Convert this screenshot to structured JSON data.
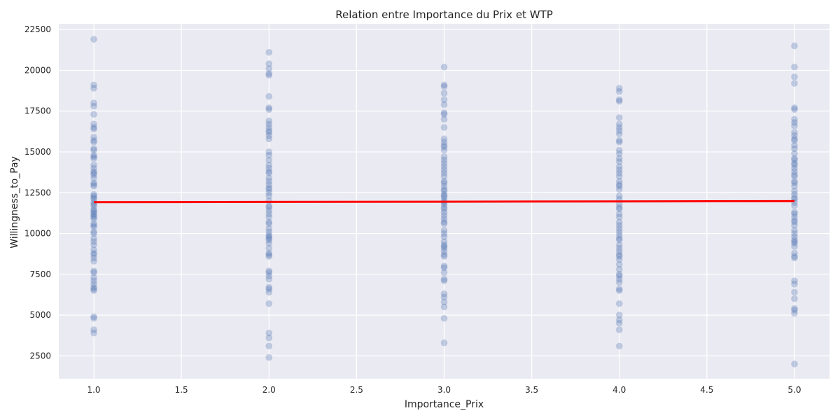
{
  "chart_data": {
    "type": "scatter",
    "title": "Relation entre Importance du Prix et WTP",
    "xlabel": "Importance_Prix",
    "ylabel": "Willingness_to_Pay",
    "xlim": [
      0.8,
      5.2
    ],
    "ylim": [
      1100,
      22850
    ],
    "xticks": [
      1.0,
      1.5,
      2.0,
      2.5,
      3.0,
      3.5,
      4.0,
      4.5,
      5.0
    ],
    "xtick_labels": [
      "1.0",
      "1.5",
      "2.0",
      "2.5",
      "3.0",
      "3.5",
      "4.0",
      "4.5",
      "5.0"
    ],
    "yticks": [
      2500,
      5000,
      7500,
      10000,
      12500,
      15000,
      17500,
      20000,
      22500
    ],
    "ytick_labels": [
      "2500",
      "5000",
      "7500",
      "10000",
      "12500",
      "15000",
      "17500",
      "20000",
      "22500"
    ],
    "grid": true,
    "colors": {
      "background": "#eaeaf2",
      "grid": "#ffffff",
      "points": "#4c72b0",
      "regression": "#ff0000"
    },
    "series": [
      {
        "x": 1,
        "y": [
          21900,
          19100,
          18900,
          18000,
          17800,
          17300,
          16700,
          16500,
          16400,
          15900,
          15700,
          15600,
          15200,
          15100,
          14800,
          14700,
          14600,
          14200,
          14000,
          13800,
          13700,
          13600,
          13400,
          13100,
          13000,
          12900,
          12400,
          12300,
          12200,
          12100,
          11900,
          11800,
          11700,
          11500,
          11400,
          11300,
          11200,
          11100,
          11000,
          10900,
          10600,
          10500,
          10400,
          10100,
          10000,
          9700,
          9500,
          9300,
          9000,
          8800,
          8700,
          8500,
          8300,
          7700,
          7600,
          7300,
          7100,
          6900,
          6700,
          6600,
          6500,
          4900,
          4800,
          4100,
          3900
        ]
      },
      {
        "x": 2,
        "y": [
          21100,
          20400,
          20100,
          19800,
          19700,
          18400,
          17700,
          17600,
          16900,
          16700,
          16500,
          16300,
          16200,
          16000,
          15800,
          15000,
          14800,
          14500,
          14200,
          14000,
          13800,
          13700,
          13400,
          13200,
          13000,
          12800,
          12700,
          12500,
          12300,
          12000,
          11700,
          11600,
          11400,
          11200,
          11000,
          10700,
          10600,
          10300,
          10100,
          9900,
          9800,
          9700,
          9600,
          9400,
          9100,
          8800,
          8700,
          8600,
          7700,
          7600,
          7400,
          7200,
          6700,
          6600,
          6400,
          5700,
          3900,
          3600,
          3100,
          2400
        ]
      },
      {
        "x": 3,
        "y": [
          20200,
          19100,
          19000,
          18600,
          18200,
          17900,
          17400,
          17300,
          17000,
          16500,
          15800,
          15600,
          15400,
          15300,
          15100,
          14700,
          14500,
          14300,
          14100,
          13900,
          13700,
          13500,
          13200,
          13100,
          12900,
          12700,
          12600,
          12400,
          12300,
          12200,
          12000,
          11900,
          11800,
          11600,
          11500,
          11300,
          11100,
          10900,
          10700,
          10600,
          10200,
          10000,
          9800,
          9500,
          9300,
          9200,
          9100,
          8900,
          8700,
          8600,
          8000,
          7900,
          7600,
          7200,
          7100,
          6300,
          6100,
          5800,
          5500,
          4800,
          3300
        ]
      },
      {
        "x": 4,
        "y": [
          18900,
          18700,
          18200,
          18100,
          17100,
          16700,
          16500,
          16300,
          16100,
          15700,
          15600,
          15100,
          14900,
          14600,
          14400,
          14100,
          13900,
          13700,
          13500,
          13200,
          13000,
          12900,
          12700,
          12300,
          12100,
          11800,
          11600,
          11500,
          11200,
          11000,
          10700,
          10500,
          10300,
          10100,
          9900,
          9700,
          9600,
          9300,
          9100,
          8900,
          8700,
          8600,
          8400,
          8100,
          7800,
          7500,
          7400,
          7200,
          7000,
          6600,
          6500,
          5700,
          5000,
          4700,
          4500,
          4100,
          3100
        ]
      },
      {
        "x": 5,
        "y": [
          21500,
          20200,
          19600,
          19200,
          17700,
          17600,
          17000,
          16800,
          16600,
          16200,
          16000,
          15800,
          15700,
          15400,
          15200,
          14900,
          14600,
          14500,
          14300,
          14200,
          14000,
          13800,
          13600,
          13500,
          13200,
          13100,
          12900,
          12600,
          12400,
          12200,
          12100,
          11900,
          11700,
          11300,
          11200,
          11000,
          10800,
          10700,
          10500,
          10200,
          10000,
          9800,
          9600,
          9500,
          9400,
          9200,
          8800,
          8600,
          8500,
          7100,
          6900,
          6400,
          6000,
          5400,
          5300,
          5100,
          2000
        ]
      }
    ],
    "regression": {
      "x": [
        1,
        5
      ],
      "y": [
        11920,
        11980
      ]
    }
  }
}
